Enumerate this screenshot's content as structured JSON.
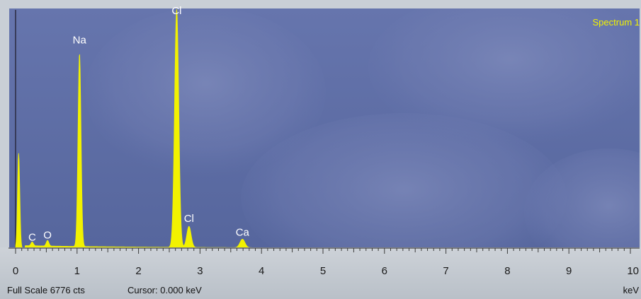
{
  "spectrum_name": "Spectrum 1",
  "status": {
    "full_scale": "Full Scale 6776 cts",
    "cursor": "Cursor: 0.000 keV",
    "unit": "keV"
  },
  "colors": {
    "spectrum_fill": "#f2f200",
    "plot_background": "#5f6ea6",
    "label_text": "#ffffff",
    "spectrum_name": "#f2f200"
  },
  "chart_data": {
    "type": "area",
    "xlabel": "keV",
    "xlim": [
      0,
      10
    ],
    "ylim": [
      0,
      6776
    ],
    "full_scale_counts": 6776,
    "x_ticks": [
      "0",
      "1",
      "2",
      "3",
      "4",
      "5",
      "6",
      "7",
      "8",
      "9",
      "10"
    ],
    "peaks": [
      {
        "element": "C",
        "energy": 0.27,
        "counts": 110
      },
      {
        "element": "O",
        "energy": 0.52,
        "counts": 160
      },
      {
        "element": "Na",
        "energy": 1.04,
        "counts": 5500
      },
      {
        "element": "Cl",
        "energy": 2.62,
        "counts": 6776
      },
      {
        "element": "Cl",
        "energy": 2.82,
        "counts": 600
      },
      {
        "element": "Ca",
        "energy": 3.69,
        "counts": 240
      }
    ],
    "extra_peaks": [
      {
        "energy": 0.05,
        "counts": 2700
      }
    ],
    "labels": [
      {
        "text": "C",
        "energy": 0.27,
        "counts": 170
      },
      {
        "text": "O",
        "energy": 0.52,
        "counts": 230
      },
      {
        "text": "Na",
        "energy": 1.04,
        "counts": 5780
      },
      {
        "text": "Cl",
        "energy": 2.62,
        "counts": 6620
      },
      {
        "text": "Cl",
        "energy": 2.82,
        "counts": 700
      },
      {
        "text": "Ca",
        "energy": 3.69,
        "counts": 310
      }
    ]
  }
}
